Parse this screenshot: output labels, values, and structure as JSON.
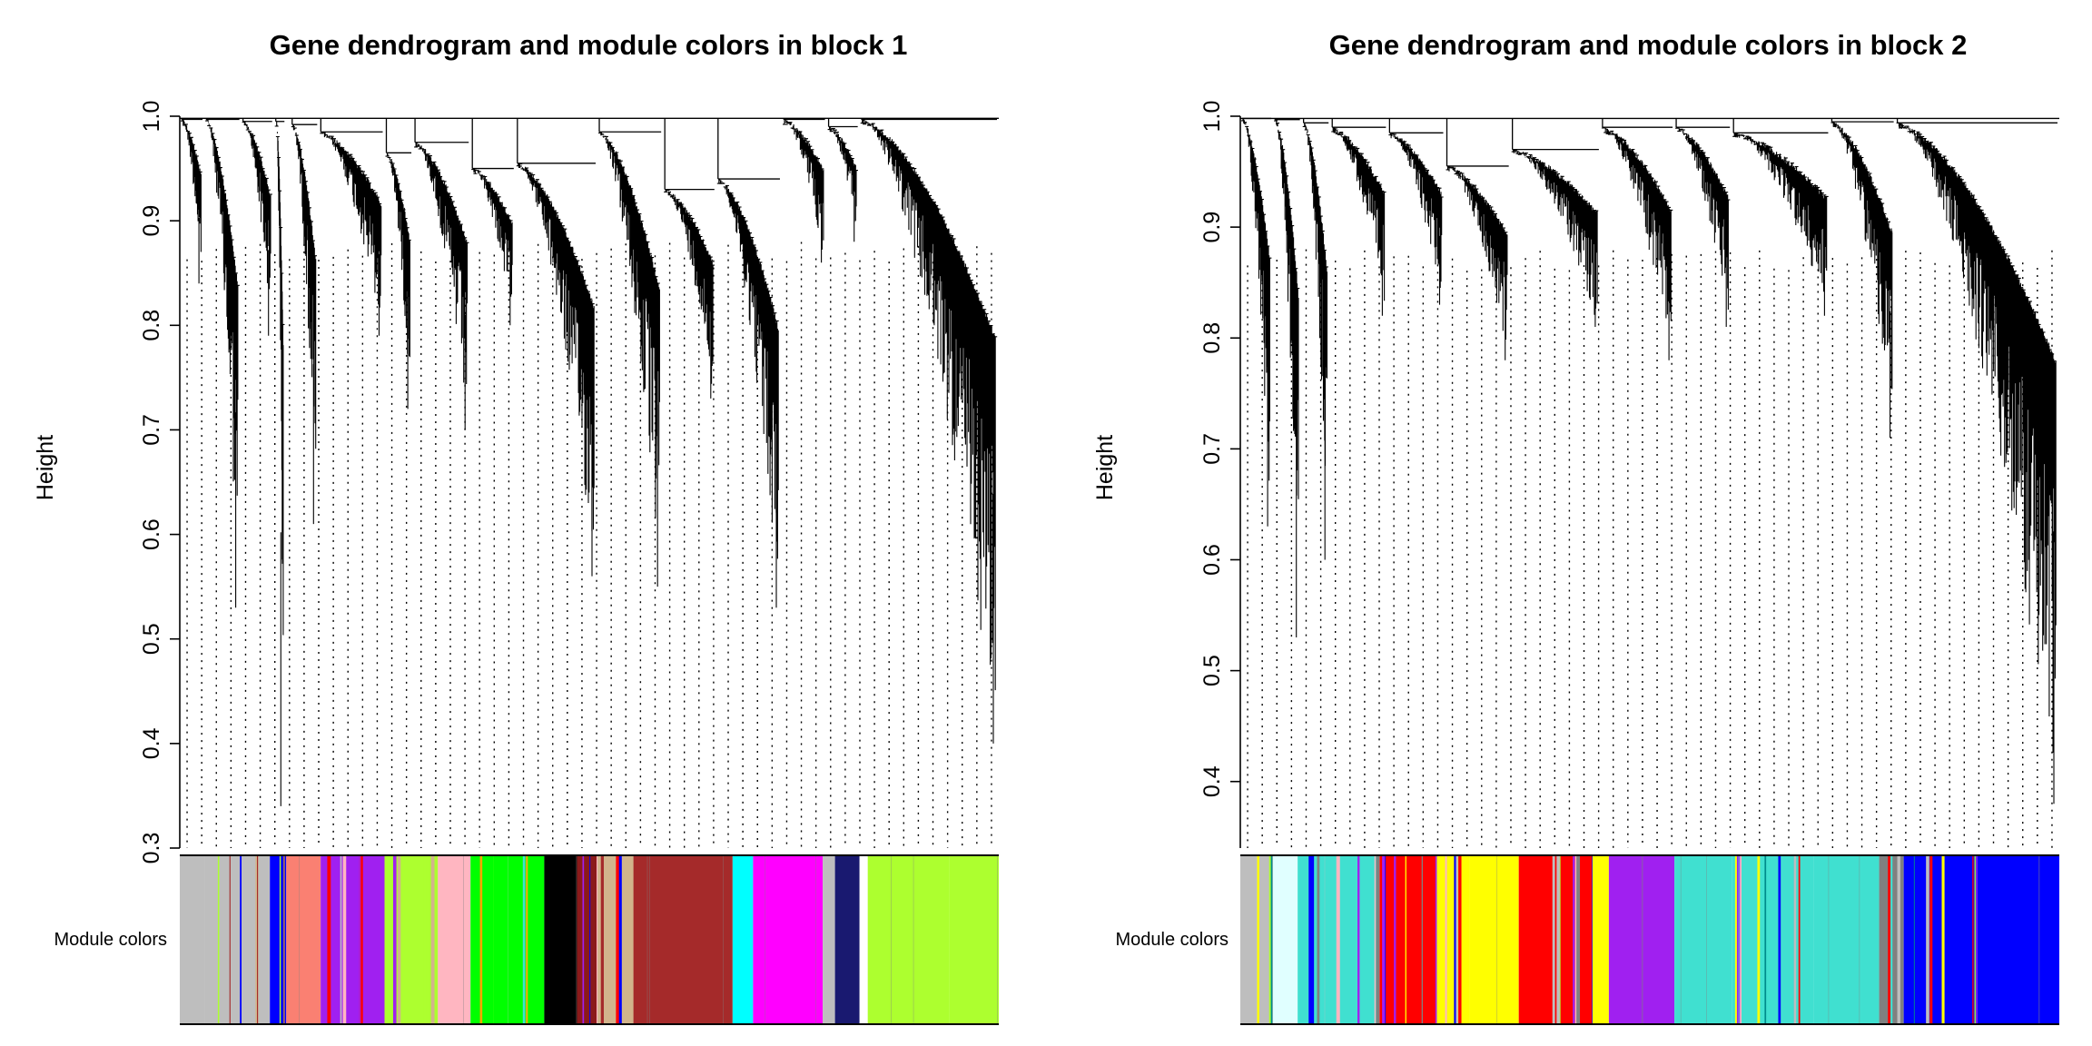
{
  "chart_data": [
    {
      "type": "dendrogram",
      "title": "Gene dendrogram and module colors in block 1",
      "ylabel": "Height",
      "ylim": [
        0.3,
        1.0
      ],
      "yticks": [
        "0.3",
        "0.4",
        "0.5",
        "0.6",
        "0.7",
        "0.8",
        "0.9",
        "1.0"
      ],
      "yaxis_range": [
        0.3,
        1.0
      ],
      "color_row_label": "Module colors",
      "branches": [
        {
          "from": 0.0,
          "to": 0.03,
          "min": 0.84,
          "top": 0.997,
          "color": "#ffffff"
        },
        {
          "from": 0.03,
          "to": 0.075,
          "min": 0.53,
          "top": 0.997,
          "color": "#ffffff"
        },
        {
          "from": 0.075,
          "to": 0.115,
          "min": 0.79,
          "top": 0.995,
          "color": "#ffffff"
        },
        {
          "from": 0.115,
          "to": 0.13,
          "min": 0.34,
          "top": 0.995,
          "color": "#ffffff"
        },
        {
          "from": 0.135,
          "to": 0.17,
          "min": 0.61,
          "top": 0.992,
          "color": "#ffffff"
        },
        {
          "from": 0.17,
          "to": 0.25,
          "min": 0.79,
          "top": 0.985,
          "color": "#ffffff"
        },
        {
          "from": 0.25,
          "to": 0.285,
          "min": 0.72,
          "top": 0.965,
          "color": "#ffffff"
        },
        {
          "from": 0.285,
          "to": 0.355,
          "min": 0.7,
          "top": 0.975,
          "color": "#ffffff"
        },
        {
          "from": 0.355,
          "to": 0.41,
          "min": 0.8,
          "top": 0.95,
          "color": "#ffffff"
        },
        {
          "from": 0.41,
          "to": 0.51,
          "min": 0.56,
          "top": 0.955,
          "color": "#ffffff"
        },
        {
          "from": 0.51,
          "to": 0.59,
          "min": 0.55,
          "top": 0.985,
          "color": "#ffffff"
        },
        {
          "from": 0.59,
          "to": 0.655,
          "min": 0.73,
          "top": 0.93,
          "color": "#ffffff"
        },
        {
          "from": 0.655,
          "to": 0.735,
          "min": 0.53,
          "top": 0.94,
          "color": "#ffffff"
        },
        {
          "from": 0.735,
          "to": 0.79,
          "min": 0.86,
          "top": 0.997,
          "color": "#ffffff"
        },
        {
          "from": 0.79,
          "to": 0.83,
          "min": 0.88,
          "top": 0.99,
          "color": "#ffffff"
        },
        {
          "from": 0.83,
          "to": 1.0,
          "min": 0.4,
          "top": 0.997,
          "color": "#ffffff"
        }
      ],
      "module_colors": [
        {
          "from": 0.0,
          "to": 0.03,
          "color": "#bebebe"
        },
        {
          "from": 0.03,
          "to": 0.11,
          "color": "#bebebe",
          "mixed": true
        },
        {
          "from": 0.11,
          "to": 0.13,
          "color": "#0000ff",
          "mixed": true
        },
        {
          "from": 0.13,
          "to": 0.172,
          "color": "#fa8072"
        },
        {
          "from": 0.172,
          "to": 0.25,
          "color": "#a020f0",
          "mixed": true
        },
        {
          "from": 0.25,
          "to": 0.315,
          "color": "#adff2f",
          "mixed": true
        },
        {
          "from": 0.315,
          "to": 0.355,
          "color": "#ffb6c1"
        },
        {
          "from": 0.355,
          "to": 0.445,
          "color": "#00ff00",
          "mixed": true
        },
        {
          "from": 0.445,
          "to": 0.485,
          "color": "#000000"
        },
        {
          "from": 0.485,
          "to": 0.51,
          "color": "#8b1a1a",
          "mixed": true
        },
        {
          "from": 0.51,
          "to": 0.555,
          "color": "#d2b48c",
          "mixed": true
        },
        {
          "from": 0.555,
          "to": 0.675,
          "color": "#a52a2a"
        },
        {
          "from": 0.675,
          "to": 0.7,
          "color": "#00ffff"
        },
        {
          "from": 0.7,
          "to": 0.785,
          "color": "#ff00ff"
        },
        {
          "from": 0.785,
          "to": 0.8,
          "color": "#bebebe"
        },
        {
          "from": 0.8,
          "to": 0.83,
          "color": "#191970"
        },
        {
          "from": 0.83,
          "to": 0.84,
          "color": "#ffffff"
        },
        {
          "from": 0.84,
          "to": 0.94,
          "color": "#adff2f"
        },
        {
          "from": 0.94,
          "to": 1.0,
          "color": "#adff2f"
        }
      ]
    },
    {
      "type": "dendrogram",
      "title": "Gene dendrogram and module colors in block 2",
      "ylabel": "Height",
      "ylim": [
        0.34,
        1.0
      ],
      "yticks": [
        "0.4",
        "0.5",
        "0.6",
        "0.7",
        "0.8",
        "0.9",
        "1.0"
      ],
      "yaxis_range": [
        0.34,
        1.0
      ],
      "color_row_label": "Module colors",
      "branches": [
        {
          "from": 0.0,
          "to": 0.04,
          "min": 0.63,
          "top": 0.998,
          "color": "#ffffff"
        },
        {
          "from": 0.04,
          "to": 0.075,
          "min": 0.53,
          "top": 0.997,
          "color": "#ffffff"
        },
        {
          "from": 0.075,
          "to": 0.11,
          "min": 0.6,
          "top": 0.994,
          "color": "#ffffff"
        },
        {
          "from": 0.11,
          "to": 0.18,
          "min": 0.82,
          "top": 0.99,
          "color": "#ffffff"
        },
        {
          "from": 0.18,
          "to": 0.25,
          "min": 0.83,
          "top": 0.985,
          "color": "#ffffff"
        },
        {
          "from": 0.25,
          "to": 0.33,
          "min": 0.78,
          "top": 0.955,
          "color": "#ffffff"
        },
        {
          "from": 0.33,
          "to": 0.44,
          "min": 0.81,
          "top": 0.97,
          "color": "#ffffff"
        },
        {
          "from": 0.44,
          "to": 0.53,
          "min": 0.78,
          "top": 0.99,
          "color": "#ffffff"
        },
        {
          "from": 0.53,
          "to": 0.6,
          "min": 0.81,
          "top": 0.99,
          "color": "#ffffff"
        },
        {
          "from": 0.6,
          "to": 0.72,
          "min": 0.82,
          "top": 0.985,
          "color": "#ffffff"
        },
        {
          "from": 0.72,
          "to": 0.8,
          "min": 0.71,
          "top": 0.995,
          "color": "#ffffff"
        },
        {
          "from": 0.8,
          "to": 1.0,
          "min": 0.38,
          "top": 0.994,
          "color": "#ffffff"
        }
      ],
      "module_colors": [
        {
          "from": 0.0,
          "to": 0.02,
          "color": "#bebebe"
        },
        {
          "from": 0.02,
          "to": 0.04,
          "color": "#bebebe",
          "mixed": true
        },
        {
          "from": 0.04,
          "to": 0.07,
          "color": "#e0ffff"
        },
        {
          "from": 0.07,
          "to": 0.17,
          "color": "#40e0d0",
          "mixed": true
        },
        {
          "from": 0.17,
          "to": 0.24,
          "color": "#ff0000",
          "mixed": true
        },
        {
          "from": 0.24,
          "to": 0.28,
          "color": "#ffff00",
          "mixed": true
        },
        {
          "from": 0.28,
          "to": 0.34,
          "color": "#ffff00"
        },
        {
          "from": 0.34,
          "to": 0.43,
          "color": "#ff0000",
          "mixed": true
        },
        {
          "from": 0.43,
          "to": 0.45,
          "color": "#ffff00"
        },
        {
          "from": 0.45,
          "to": 0.53,
          "color": "#a020f0"
        },
        {
          "from": 0.53,
          "to": 0.6,
          "color": "#40e0d0"
        },
        {
          "from": 0.6,
          "to": 0.7,
          "color": "#40e0d0",
          "mixed": true
        },
        {
          "from": 0.7,
          "to": 0.78,
          "color": "#40e0d0"
        },
        {
          "from": 0.78,
          "to": 0.81,
          "color": "#808080",
          "mixed": true
        },
        {
          "from": 0.81,
          "to": 0.9,
          "color": "#0000ff",
          "mixed": true
        },
        {
          "from": 0.9,
          "to": 1.0,
          "color": "#0000ff"
        }
      ]
    }
  ]
}
